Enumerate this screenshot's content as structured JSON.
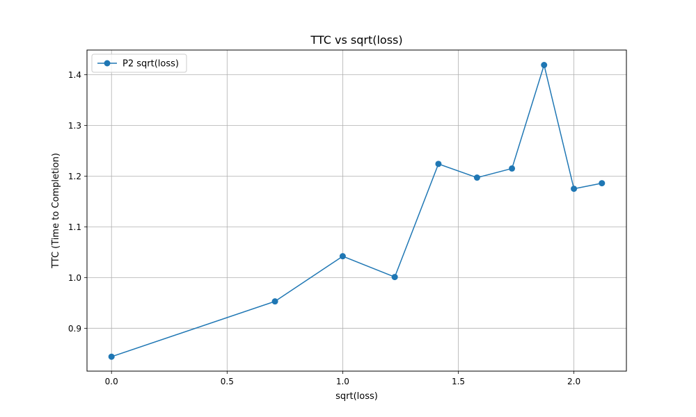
{
  "chart_data": {
    "type": "line",
    "title": "TTC vs sqrt(loss)",
    "xlabel": "sqrt(loss)",
    "ylabel": "TTC (Time to Completion)",
    "xlim": [
      -0.106,
      2.227
    ],
    "ylim": [
      0.8155,
      1.4485
    ],
    "xticks": [
      0.0,
      0.5,
      1.0,
      1.5,
      2.0
    ],
    "xtick_labels": [
      "0.0",
      "0.5",
      "1.0",
      "1.5",
      "2.0"
    ],
    "yticks": [
      0.9,
      1.0,
      1.1,
      1.2,
      1.3,
      1.4
    ],
    "ytick_labels": [
      "0.9",
      "1.0",
      "1.1",
      "1.2",
      "1.3",
      "1.4"
    ],
    "grid": true,
    "legend_position": "top-left",
    "series": [
      {
        "name": "P2 sqrt(loss)",
        "color": "#1f77b4",
        "marker": "circle",
        "x": [
          0.0,
          0.707,
          1.0,
          1.225,
          1.414,
          1.581,
          1.732,
          1.871,
          2.0,
          2.121
        ],
        "y": [
          0.844,
          0.953,
          1.042,
          1.001,
          1.224,
          1.197,
          1.215,
          1.419,
          1.175,
          1.186
        ]
      }
    ]
  }
}
